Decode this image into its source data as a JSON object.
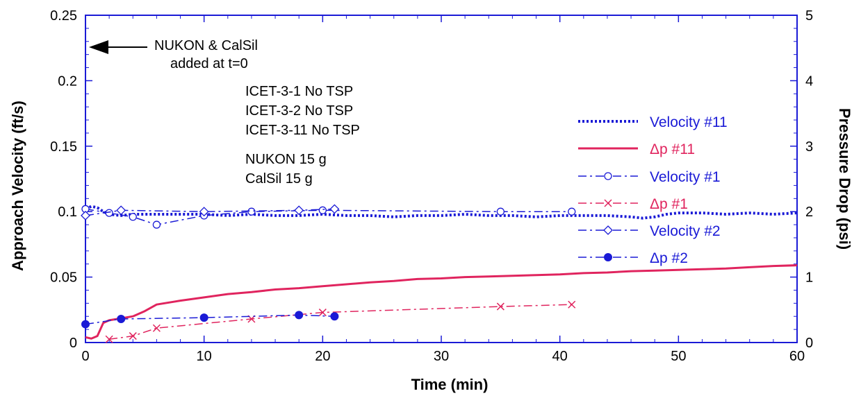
{
  "chart_data": {
    "type": "line",
    "xlabel": "Time (min)",
    "ylabel": "Approach Velocity (ft/s)",
    "y2label": "Pressure Drop (psi)",
    "xlim": [
      0,
      60
    ],
    "ylim": [
      0,
      0.25
    ],
    "y2lim": [
      0,
      5
    ],
    "grid": false,
    "x_ticks": [
      "0",
      "10",
      "20",
      "30",
      "40",
      "50",
      "60"
    ],
    "y_ticks": [
      "0",
      "0.05",
      "0.1",
      "0.15",
      "0.2",
      "0.25"
    ],
    "y2_ticks": [
      "0",
      "1",
      "2",
      "3",
      "4",
      "5"
    ],
    "legend_position": "top-right",
    "colors": {
      "velocity": "#1a1ad6",
      "dp": "#e0245e",
      "axis": "#1a1ad6"
    },
    "series": [
      {
        "name": "Velocity #11",
        "axis": "left",
        "style": "dotted-thick",
        "color": "#1a1ad6",
        "marker": "none",
        "x": [
          0,
          0.5,
          1,
          1.5,
          2,
          3,
          4,
          5,
          6,
          8,
          10,
          12,
          14,
          16,
          18,
          20,
          22,
          24,
          26,
          28,
          30,
          32,
          34,
          36,
          38,
          40,
          42,
          44,
          46,
          47,
          48,
          49,
          50,
          52,
          54,
          56,
          58,
          60
        ],
        "y": [
          0.102,
          0.104,
          0.103,
          0.1,
          0.098,
          0.097,
          0.098,
          0.098,
          0.098,
          0.098,
          0.098,
          0.097,
          0.098,
          0.097,
          0.097,
          0.098,
          0.097,
          0.097,
          0.096,
          0.097,
          0.097,
          0.098,
          0.097,
          0.097,
          0.096,
          0.097,
          0.097,
          0.097,
          0.096,
          0.095,
          0.096,
          0.098,
          0.099,
          0.099,
          0.098,
          0.099,
          0.098,
          0.099
        ]
      },
      {
        "name": "Δp #11",
        "axis": "right",
        "style": "solid",
        "color": "#e0245e",
        "marker": "none",
        "x": [
          0,
          0.5,
          1,
          1.5,
          2,
          3,
          4,
          5,
          6,
          8,
          10,
          12,
          14,
          16,
          18,
          20,
          22,
          24,
          26,
          28,
          30,
          32,
          34,
          36,
          38,
          40,
          42,
          44,
          46,
          48,
          50,
          52,
          54,
          56,
          58,
          60
        ],
        "y": [
          0.08,
          0.06,
          0.1,
          0.3,
          0.34,
          0.37,
          0.4,
          0.48,
          0.58,
          0.64,
          0.69,
          0.74,
          0.77,
          0.81,
          0.83,
          0.86,
          0.89,
          0.92,
          0.94,
          0.97,
          0.98,
          1.0,
          1.01,
          1.02,
          1.03,
          1.04,
          1.06,
          1.07,
          1.09,
          1.1,
          1.11,
          1.12,
          1.13,
          1.15,
          1.17,
          1.18
        ]
      },
      {
        "name": "Velocity #1",
        "axis": "left",
        "style": "dashdot",
        "color": "#1a1ad6",
        "marker": "open-circle",
        "x": [
          0,
          2,
          4,
          6,
          10,
          14,
          20,
          35,
          41
        ],
        "y": [
          0.102,
          0.099,
          0.096,
          0.09,
          0.097,
          0.1,
          0.101,
          0.1,
          0.1
        ]
      },
      {
        "name": "Δp #1",
        "axis": "right",
        "style": "dashdot",
        "color": "#e0245e",
        "marker": "x",
        "x": [
          2,
          4,
          6,
          14,
          20,
          35,
          41
        ],
        "y": [
          0.05,
          0.1,
          0.22,
          0.36,
          0.46,
          0.55,
          0.58
        ]
      },
      {
        "name": "Velocity #2",
        "axis": "left",
        "style": "dashdot",
        "color": "#1a1ad6",
        "marker": "open-diamond",
        "x": [
          0,
          3,
          10,
          18,
          21
        ],
        "y": [
          0.097,
          0.101,
          0.1,
          0.101,
          0.102
        ]
      },
      {
        "name": "Δp #2",
        "axis": "right",
        "style": "dashdot",
        "color": "#1a1ad6",
        "marker": "filled-circle",
        "x": [
          0,
          3,
          10,
          18,
          21
        ],
        "y": [
          0.28,
          0.36,
          0.38,
          0.42,
          0.4
        ]
      }
    ],
    "annotations": {
      "arrow_text_1": "NUKON & CalSil",
      "arrow_text_2": "added at t=0",
      "test_lines": [
        "ICET-3-1   No TSP",
        "ICET-3-2   No TSP",
        "ICET-3-11 No TSP"
      ],
      "load_lines": [
        "NUKON 15 g",
        "CalSil 15 g"
      ]
    }
  }
}
